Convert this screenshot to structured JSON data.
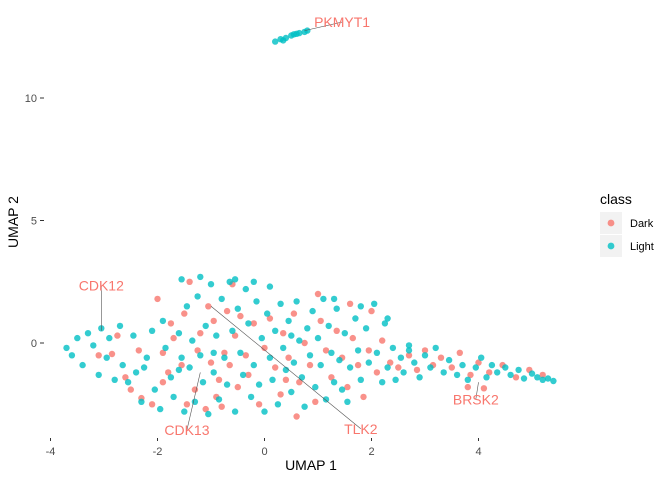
{
  "chart_data": {
    "type": "scatter",
    "title": "",
    "xlabel": "UMAP 1",
    "ylabel": "UMAP 2",
    "xlim": [
      -4,
      5.5
    ],
    "ylim": [
      -4,
      13
    ],
    "x_ticks": [
      -4,
      -2,
      0,
      2,
      4
    ],
    "y_ticks": [
      0,
      5,
      10
    ],
    "grid": false,
    "legend": {
      "title": "class",
      "position": "right",
      "entries": [
        {
          "label": "Dark",
          "color": "#F8766D"
        },
        {
          "label": "Light",
          "color": "#00BFC4"
        }
      ]
    },
    "series": [
      {
        "name": "Dark",
        "color": "#F8766D",
        "points": [
          [
            -3.1,
            -0.5
          ],
          [
            -2.85,
            -0.45
          ],
          [
            -2.75,
            0.3
          ],
          [
            -2.6,
            -1.4
          ],
          [
            -2.5,
            -1.9
          ],
          [
            -2.35,
            -0.3
          ],
          [
            -2.3,
            -2.25
          ],
          [
            -2.1,
            -2.5
          ],
          [
            -1.9,
            -0.4
          ],
          [
            -1.8,
            -1.2
          ],
          [
            -1.75,
            0.8
          ],
          [
            -1.7,
            0.2
          ],
          [
            -1.55,
            -0.9
          ],
          [
            -1.5,
            1.2
          ],
          [
            -1.45,
            -2.5
          ],
          [
            -1.3,
            -1.9
          ],
          [
            -1.25,
            -0.3
          ],
          [
            -1.2,
            0.4
          ],
          [
            -1.1,
            -2.7
          ],
          [
            -1.05,
            1.5
          ],
          [
            -1.0,
            -0.8
          ],
          [
            -0.95,
            0.9
          ],
          [
            -0.85,
            -1.5
          ],
          [
            -0.8,
            -2.6
          ],
          [
            -0.75,
            -0.4
          ],
          [
            -0.7,
            1.3
          ],
          [
            -0.65,
            -0.9
          ],
          [
            -0.55,
            0.3
          ],
          [
            -0.5,
            -1.8
          ],
          [
            -0.45,
            1.1
          ],
          [
            -0.35,
            -0.5
          ],
          [
            -0.3,
            -1.3
          ],
          [
            -0.2,
            0.8
          ],
          [
            -0.1,
            -2.5
          ],
          [
            0.0,
            -0.2
          ],
          [
            0.1,
            1.0
          ],
          [
            0.2,
            -1.0
          ],
          [
            0.3,
            -2.1
          ],
          [
            0.35,
            0.4
          ],
          [
            0.45,
            -0.6
          ],
          [
            0.55,
            1.2
          ],
          [
            0.65,
            -1.6
          ],
          [
            0.75,
            0.0
          ],
          [
            0.85,
            -0.9
          ],
          [
            0.95,
            -2.4
          ],
          [
            1.05,
            0.9
          ],
          [
            1.15,
            -0.3
          ],
          [
            1.25,
            -1.4
          ],
          [
            1.35,
            0.5
          ],
          [
            1.45,
            -0.6
          ],
          [
            1.55,
            -1.8
          ],
          [
            1.65,
            0.2
          ],
          [
            1.75,
            -0.9
          ],
          [
            1.85,
            -2.2
          ],
          [
            1.95,
            -0.3
          ],
          [
            2.1,
            -1.2
          ],
          [
            2.2,
            0.1
          ],
          [
            2.35,
            -0.8
          ],
          [
            2.5,
            -1.0
          ],
          [
            2.7,
            -0.5
          ],
          [
            2.85,
            -1.1
          ],
          [
            3.0,
            -0.3
          ],
          [
            3.15,
            -0.9
          ],
          [
            3.3,
            -0.6
          ],
          [
            3.5,
            -1.0
          ],
          [
            3.65,
            -0.4
          ],
          [
            3.85,
            -1.3
          ],
          [
            4.0,
            -0.8
          ],
          [
            4.2,
            -1.2
          ],
          [
            4.45,
            -0.9
          ],
          [
            4.7,
            -1.4
          ],
          [
            4.95,
            -1.1
          ],
          [
            5.2,
            -1.3
          ],
          [
            -0.6,
            2.4
          ],
          [
            -1.4,
            2.5
          ],
          [
            -0.9,
            -2.2
          ],
          [
            0.6,
            -3.0
          ],
          [
            1.0,
            2.0
          ],
          [
            2.0,
            1.3
          ],
          [
            -2.0,
            1.8
          ],
          [
            3.8,
            -1.8
          ],
          [
            4.1,
            -1.85
          ],
          [
            -1.9,
            -1.6
          ],
          [
            0.4,
            -1.5
          ],
          [
            1.6,
            1.6
          ]
        ]
      },
      {
        "name": "Light",
        "color": "#00BFC4",
        "points": [
          [
            -3.7,
            -0.2
          ],
          [
            -3.6,
            -0.5
          ],
          [
            -3.5,
            0.2
          ],
          [
            -3.4,
            -0.9
          ],
          [
            -3.3,
            0.4
          ],
          [
            -3.2,
            -0.1
          ],
          [
            -3.1,
            -1.3
          ],
          [
            -3.05,
            0.6
          ],
          [
            -2.95,
            -0.6
          ],
          [
            -2.9,
            0.2
          ],
          [
            -2.8,
            -1.5
          ],
          [
            -2.7,
            0.7
          ],
          [
            -2.65,
            -0.9
          ],
          [
            -2.55,
            -1.6
          ],
          [
            -2.45,
            0.3
          ],
          [
            -2.4,
            -1.2
          ],
          [
            -2.3,
            -2.4
          ],
          [
            -2.2,
            -0.6
          ],
          [
            -2.1,
            0.5
          ],
          [
            -2.05,
            -1.9
          ],
          [
            -1.95,
            -2.7
          ],
          [
            -1.9,
            0.9
          ],
          [
            -1.85,
            -0.2
          ],
          [
            -1.75,
            -1.4
          ],
          [
            -1.7,
            -2.2
          ],
          [
            -1.6,
            0.4
          ],
          [
            -1.55,
            -0.6
          ],
          [
            -1.5,
            -2.8
          ],
          [
            -1.45,
            1.5
          ],
          [
            -1.4,
            -1.0
          ],
          [
            -1.35,
            0.1
          ],
          [
            -1.3,
            -2.4
          ],
          [
            -1.25,
            1.9
          ],
          [
            -1.2,
            -0.5
          ],
          [
            -1.15,
            -1.6
          ],
          [
            -1.1,
            0.7
          ],
          [
            -1.05,
            -2.9
          ],
          [
            -1.0,
            2.4
          ],
          [
            -0.95,
            -1.2
          ],
          [
            -0.9,
            0.3
          ],
          [
            -0.85,
            -2.3
          ],
          [
            -0.8,
            1.8
          ],
          [
            -0.75,
            -0.6
          ],
          [
            -0.7,
            -1.7
          ],
          [
            -0.65,
            2.5
          ],
          [
            -0.6,
            0.5
          ],
          [
            -0.55,
            -2.8
          ],
          [
            -0.5,
            1.4
          ],
          [
            -0.45,
            -0.4
          ],
          [
            -0.4,
            -1.3
          ],
          [
            -0.35,
            2.2
          ],
          [
            -0.3,
            0.8
          ],
          [
            -0.25,
            -2.2
          ],
          [
            -0.2,
            -0.9
          ],
          [
            -0.15,
            1.7
          ],
          [
            -0.1,
            -1.7
          ],
          [
            -0.05,
            0.2
          ],
          [
            0.0,
            -2.8
          ],
          [
            0.05,
            1.2
          ],
          [
            0.1,
            -0.6
          ],
          [
            0.15,
            -1.5
          ],
          [
            0.2,
            0.5
          ],
          [
            0.25,
            -2.5
          ],
          [
            0.3,
            1.6
          ],
          [
            0.35,
            -0.2
          ],
          [
            0.4,
            -1.1
          ],
          [
            0.45,
            0.9
          ],
          [
            0.5,
            -2.0
          ],
          [
            0.55,
            -0.8
          ],
          [
            0.6,
            1.7
          ],
          [
            0.65,
            0.1
          ],
          [
            0.7,
            -1.4
          ],
          [
            0.75,
            -2.6
          ],
          [
            0.8,
            0.6
          ],
          [
            0.85,
            -0.5
          ],
          [
            0.9,
            1.3
          ],
          [
            0.95,
            -1.8
          ],
          [
            1.0,
            0.2
          ],
          [
            1.05,
            -0.9
          ],
          [
            1.1,
            1.8
          ],
          [
            1.15,
            -2.3
          ],
          [
            1.2,
            0.7
          ],
          [
            1.25,
            -0.4
          ],
          [
            1.3,
            -1.6
          ],
          [
            1.35,
            1.4
          ],
          [
            1.4,
            -0.7
          ],
          [
            1.5,
            0.4
          ],
          [
            1.55,
            -2.4
          ],
          [
            1.6,
            -1.0
          ],
          [
            1.7,
            1.0
          ],
          [
            1.75,
            -0.3
          ],
          [
            1.8,
            -1.5
          ],
          [
            1.9,
            0.6
          ],
          [
            1.95,
            -0.8
          ],
          [
            2.05,
            1.6
          ],
          [
            2.1,
            -0.4
          ],
          [
            2.2,
            -1.6
          ],
          [
            2.25,
            0.8
          ],
          [
            2.3,
            -1.0
          ],
          [
            2.4,
            -0.2
          ],
          [
            2.45,
            -1.5
          ],
          [
            2.55,
            -0.6
          ],
          [
            2.6,
            -1.2
          ],
          [
            2.7,
            -0.1
          ],
          [
            2.8,
            -0.8
          ],
          [
            2.9,
            -1.4
          ],
          [
            3.0,
            -0.5
          ],
          [
            3.1,
            -1.0
          ],
          [
            3.2,
            -0.2
          ],
          [
            3.35,
            -1.2
          ],
          [
            3.45,
            -0.7
          ],
          [
            3.6,
            -1.3
          ],
          [
            3.7,
            -0.9
          ],
          [
            3.8,
            -1.5
          ],
          [
            3.95,
            -1.0
          ],
          [
            4.05,
            -0.6
          ],
          [
            4.15,
            -1.4
          ],
          [
            4.25,
            -0.9
          ],
          [
            4.35,
            -1.2
          ],
          [
            4.5,
            -1.0
          ],
          [
            4.6,
            -1.3
          ],
          [
            4.75,
            -1.1
          ],
          [
            4.85,
            -1.45
          ],
          [
            5.0,
            -1.25
          ],
          [
            5.1,
            -1.4
          ],
          [
            5.2,
            -1.5
          ],
          [
            5.3,
            -1.45
          ],
          [
            5.4,
            -1.55
          ],
          [
            -0.55,
            2.6
          ],
          [
            -0.2,
            2.5
          ],
          [
            -1.55,
            2.6
          ],
          [
            -1.2,
            2.7
          ],
          [
            0.1,
            2.3
          ],
          [
            1.3,
            1.8
          ],
          [
            1.8,
            1.5
          ],
          [
            2.3,
            1.0
          ],
          [
            -2.25,
            -1.0
          ],
          [
            -1.6,
            -1.1
          ],
          [
            -0.95,
            -0.4
          ],
          [
            0.5,
            0.3
          ],
          [
            1.45,
            -1.9
          ],
          [
            2.7,
            -0.3
          ],
          [
            0.2,
            12.3
          ],
          [
            0.3,
            12.4
          ],
          [
            0.4,
            12.45
          ],
          [
            0.5,
            12.55
          ],
          [
            0.55,
            12.6
          ],
          [
            0.65,
            12.65
          ],
          [
            0.75,
            12.7
          ],
          [
            0.8,
            12.75
          ],
          [
            0.35,
            12.35
          ],
          [
            0.6,
            12.62
          ]
        ]
      }
    ],
    "annotations": [
      {
        "label": "PKMYT1",
        "point": [
          0.75,
          12.75
        ],
        "text_at": [
          1.45,
          13.1
        ]
      },
      {
        "label": "CDK12",
        "point": [
          -3.05,
          0.5
        ],
        "text_at": [
          -3.05,
          2.35
        ]
      },
      {
        "label": "CDK13",
        "point": [
          -1.2,
          -1.2
        ],
        "text_at": [
          -1.45,
          -3.55
        ]
      },
      {
        "label": "TLK2",
        "point": [
          -1.0,
          1.5
        ],
        "text_at": [
          1.8,
          -3.5
        ]
      },
      {
        "label": "BRSK2",
        "point": [
          4.0,
          -1.6
        ],
        "text_at": [
          3.95,
          -2.3
        ]
      }
    ]
  }
}
